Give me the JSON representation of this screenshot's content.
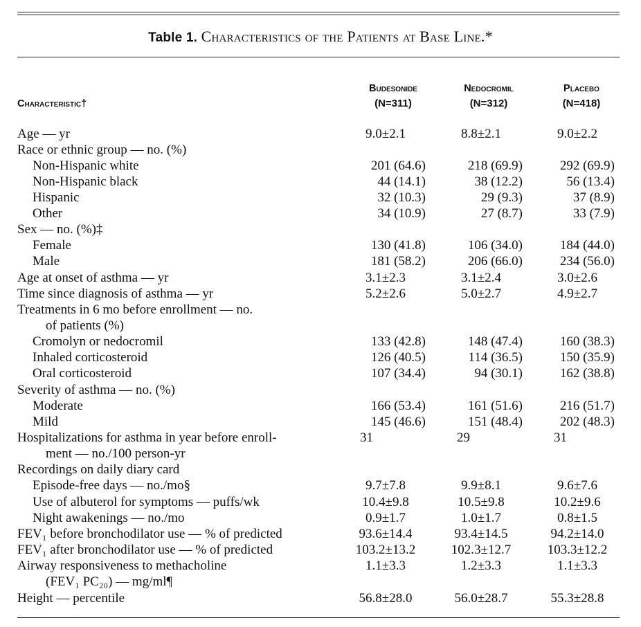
{
  "title": {
    "label": "Table 1.",
    "text": "Characteristics of the Patients at Base Line.*"
  },
  "headers": {
    "characteristic": "Characteristic†",
    "budesonide": "Budesonide",
    "budesonide_n": "(N=311)",
    "nedocromil": "Nedocromil",
    "nedocromil_n": "(N=312)",
    "placebo": "Placebo",
    "placebo_n": "(N=418)"
  },
  "rows": [
    {
      "label": "Age — yr",
      "b": "9.0±2.1",
      "n": "8.8±2.1",
      "p": "9.0±2.2"
    },
    {
      "label": "Race or ethnic group — no. (%)",
      "b": "",
      "n": "",
      "p": ""
    },
    {
      "label": "Non-Hispanic white",
      "b": "201 (64.6)",
      "n": "218 (69.9)",
      "p": "292 (69.9)"
    },
    {
      "label": "Non-Hispanic black",
      "b": "44 (14.1)",
      "n": "38 (12.2)",
      "p": "56 (13.4)"
    },
    {
      "label": "Hispanic",
      "b": "32 (10.3)",
      "n": "29 (9.3)",
      "p": "37 (8.9)"
    },
    {
      "label": "Other",
      "b": "34 (10.9)",
      "n": "27 (8.7)",
      "p": "33 (7.9)"
    },
    {
      "label": "Sex — no. (%)‡",
      "b": "",
      "n": "",
      "p": ""
    },
    {
      "label": "Female",
      "b": "130 (41.8)",
      "n": "106 (34.0)",
      "p": "184 (44.0)"
    },
    {
      "label": "Male",
      "b": "181 (58.2)",
      "n": "206 (66.0)",
      "p": "234 (56.0)"
    },
    {
      "label": "Age at onset of asthma — yr",
      "b": "3.1±2.3",
      "n": "3.1±2.4",
      "p": "3.0±2.6"
    },
    {
      "label": "Time since diagnosis of asthma — yr",
      "b": "5.2±2.6",
      "n": "5.0±2.7",
      "p": "4.9±2.7"
    },
    {
      "label": "Treatments in 6 mo before enrollment — no.",
      "b": "",
      "n": "",
      "p": ""
    },
    {
      "label": "of patients (%)",
      "b": "",
      "n": "",
      "p": ""
    },
    {
      "label": "Cromolyn or nedocromil",
      "b": "133 (42.8)",
      "n": "148 (47.4)",
      "p": "160 (38.3)"
    },
    {
      "label": "Inhaled corticosteroid",
      "b": "126 (40.5)",
      "n": "114 (36.5)",
      "p": "150 (35.9)"
    },
    {
      "label": "Oral corticosteroid",
      "b": "107 (34.4)",
      "n": "94 (30.1)",
      "p": "162 (38.8)"
    },
    {
      "label": "Severity of asthma — no. (%)",
      "b": "",
      "n": "",
      "p": ""
    },
    {
      "label": "Moderate",
      "b": "166 (53.4)",
      "n": "161 (51.6)",
      "p": "216 (51.7)"
    },
    {
      "label": "Mild",
      "b": "145 (46.6)",
      "n": "151 (48.4)",
      "p": "202 (48.3)"
    },
    {
      "label": "Hospitalizations for asthma in year before enroll-",
      "b": "31",
      "n": "29",
      "p": "31"
    },
    {
      "label": "ment — no./100 person-yr",
      "b": "",
      "n": "",
      "p": ""
    },
    {
      "label": "Recordings on daily diary card",
      "b": "",
      "n": "",
      "p": ""
    },
    {
      "label": "Episode-free days — no./mo§",
      "b": "9.7±7.8",
      "n": "9.9±8.1",
      "p": "9.6±7.6"
    },
    {
      "label": "Use of albuterol for symptoms — puffs/wk",
      "b": "10.4±9.8",
      "n": "10.5±9.8",
      "p": "10.2±9.6"
    },
    {
      "label": "Night awakenings — no./mo",
      "b": "0.9±1.7",
      "n": "1.0±1.7",
      "p": "0.8±1.5"
    },
    {
      "label": "FEV₁ before bronchodilator use — % of predicted",
      "b": "93.6±14.4",
      "n": "93.4±14.5",
      "p": "94.2±14.0"
    },
    {
      "label": "FEV₁ after bronchodilator use — % of predicted",
      "b": "103.2±13.2",
      "n": "102.3±12.7",
      "p": "103.3±12.2"
    },
    {
      "label": "Airway responsiveness to methacholine",
      "b": "1.1±3.3",
      "n": "1.2±3.3",
      "p": "1.1±3.3"
    },
    {
      "label": "(FEV₁ PC₂₀) — mg/ml¶",
      "b": "",
      "n": "",
      "p": ""
    },
    {
      "label": "Height — percentile",
      "b": "56.8±28.0",
      "n": "56.0±28.7",
      "p": "55.3±28.8"
    }
  ]
}
